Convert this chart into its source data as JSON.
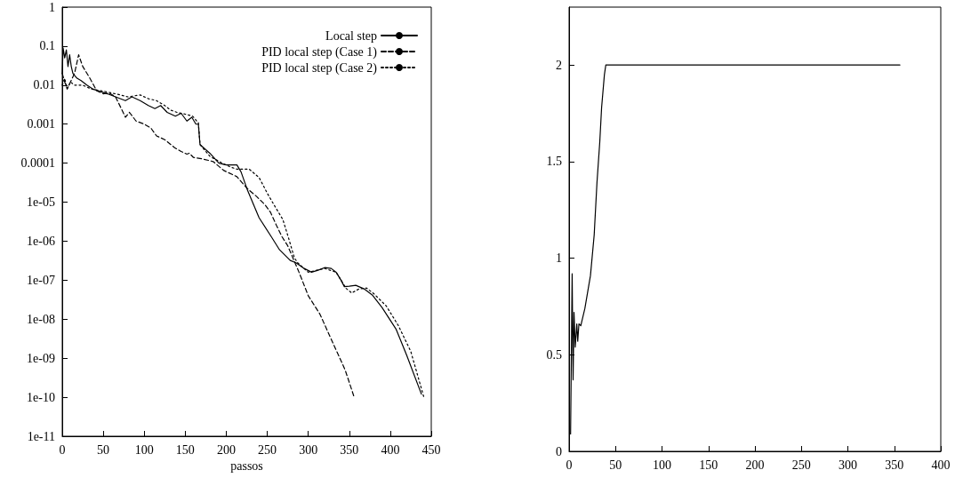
{
  "chart_data": [
    {
      "type": "line",
      "xlabel": "passos",
      "log": "y",
      "legend": "top right",
      "grid": false,
      "xlim": [
        0,
        450
      ],
      "xticks": [
        0,
        50,
        100,
        150,
        200,
        250,
        300,
        350,
        400,
        450
      ],
      "ylim": [
        1e-11,
        1
      ],
      "yticks": [
        1,
        0.1,
        0.01,
        0.001,
        0.0001,
        {
          "value": 1e-05,
          "label": "1e-05"
        },
        {
          "value": 1e-06,
          "label": "1e-06"
        },
        {
          "value": 1e-07,
          "label": "1e-07"
        },
        {
          "value": 1e-08,
          "label": "1e-08"
        },
        {
          "value": 1e-09,
          "label": "1e-09"
        },
        {
          "value": 1e-10,
          "label": "1e-10"
        },
        {
          "value": 1e-11,
          "label": "1e-11"
        }
      ],
      "series": [
        {
          "name": "Local step",
          "color": "#000000",
          "line_style": "solid",
          "x": [
            0,
            1,
            3,
            5,
            7,
            9,
            11,
            13,
            18,
            23,
            30,
            37,
            45,
            55,
            65,
            77,
            85,
            95,
            105,
            113,
            120,
            128,
            138,
            145,
            152,
            158,
            163,
            166,
            168,
            180,
            191,
            200,
            213,
            218,
            226,
            240,
            255,
            265,
            278,
            285,
            295,
            304,
            312,
            320,
            328,
            334,
            340,
            344,
            350,
            358,
            368,
            378,
            390,
            407,
            420,
            438
          ],
          "values": [
            0.02,
            0.09,
            0.05,
            0.08,
            0.03,
            0.06,
            0.03,
            0.02,
            0.015,
            0.013,
            0.01,
            0.008,
            0.007,
            0.006,
            0.005,
            0.004,
            0.005,
            0.004,
            0.003,
            0.0025,
            0.003,
            0.002,
            0.0016,
            0.0019,
            0.0012,
            0.0015,
            0.001,
            0.001,
            0.0003,
            0.00018,
            0.0001,
            9e-05,
            9e-05,
            6e-05,
            2e-05,
            4e-06,
            1.3e-06,
            6e-07,
            3.2e-07,
            2.8e-07,
            2e-07,
            1.6e-07,
            1.8e-07,
            2.1e-07,
            2e-07,
            1.6e-07,
            1e-07,
            6.8e-08,
            7e-08,
            7.4e-08,
            6e-08,
            4.2e-08,
            2e-08,
            5.6e-09,
            1.2e-09,
            1.2e-10
          ]
        },
        {
          "name": "PID local step (Case 1)",
          "color": "#000000",
          "line_style": "dashed",
          "x": [
            0,
            3,
            6,
            10,
            15,
            20,
            25,
            33,
            42,
            50,
            57,
            65,
            72,
            77,
            82,
            90,
            100,
            108,
            115,
            125,
            137,
            145,
            152,
            155,
            160,
            170,
            184,
            197,
            213,
            226,
            237,
            247,
            254,
            261,
            268,
            275,
            289,
            300,
            314,
            332,
            345,
            356
          ],
          "values": [
            0.02,
            0.012,
            0.008,
            0.012,
            0.02,
            0.06,
            0.03,
            0.016,
            0.0072,
            0.006,
            0.0063,
            0.005,
            0.0025,
            0.0015,
            0.002,
            0.0012,
            0.001,
            0.0008,
            0.0005,
            0.0004,
            0.00025,
            0.0002,
            0.00017,
            0.00018,
            0.00014,
            0.00013,
            0.00011,
            6.5e-05,
            4.5e-05,
            2.2e-05,
            1.4e-05,
            8.7e-06,
            5.5e-06,
            2.6e-06,
            1.3e-06,
            7.6e-07,
            1.55e-07,
            4e-08,
            1.38e-08,
            2e-09,
            5e-10,
            1e-10
          ]
        },
        {
          "name": "PID local step (Case 2)",
          "color": "#000000",
          "line_style": "dotted",
          "x": [
            0,
            3,
            6,
            10,
            15,
            25,
            35,
            50,
            65,
            80,
            95,
            105,
            115,
            125,
            132,
            140,
            150,
            159,
            164,
            166,
            168,
            180,
            195,
            205,
            213,
            228,
            240,
            250,
            258,
            269,
            276,
            283,
            287,
            300,
            320,
            334,
            340,
            346,
            353,
            362,
            371,
            380,
            395,
            410,
            425,
            441
          ],
          "values": [
            0.01,
            0.015,
            0.008,
            0.012,
            0.01,
            0.01,
            0.008,
            0.007,
            0.006,
            0.005,
            0.0056,
            0.0045,
            0.004,
            0.003,
            0.0023,
            0.002,
            0.0018,
            0.0016,
            0.0012,
            0.0011,
            0.0003,
            0.00015,
            0.0001,
            8e-05,
            7e-05,
            7e-05,
            4.3e-05,
            1.7e-05,
            8.7e-06,
            3.6e-06,
            1.2e-06,
            3.8e-07,
            2.8e-07,
            1.6e-07,
            2e-07,
            1.6e-07,
            1e-07,
            6.2e-08,
            4.7e-08,
            6e-08,
            6.3e-08,
            4.5e-08,
            2.2e-08,
            6.8e-09,
            1.5e-09,
            1e-10
          ]
        }
      ]
    },
    {
      "type": "line",
      "grid": false,
      "xlim": [
        0,
        400
      ],
      "xticks": [
        0,
        50,
        100,
        150,
        200,
        250,
        300,
        350,
        400
      ],
      "ylim": [
        0,
        2.3
      ],
      "yticks": [
        0,
        0.5,
        1,
        1.5,
        2
      ],
      "series": [
        {
          "color": "#000000",
          "line_style": "solid",
          "x": [
            1.6,
            3.3,
            4.3,
            5.3,
            6.6,
            8.3,
            9.3,
            10.6,
            12.6,
            17,
            23,
            27,
            30,
            33,
            35,
            38,
            39.5,
            356
          ],
          "values": [
            0.09,
            0.92,
            0.37,
            0.72,
            0.54,
            0.66,
            0.57,
            0.66,
            0.65,
            0.74,
            0.91,
            1.12,
            1.39,
            1.6,
            1.78,
            1.95,
            2.0,
            2.0
          ]
        }
      ]
    }
  ]
}
